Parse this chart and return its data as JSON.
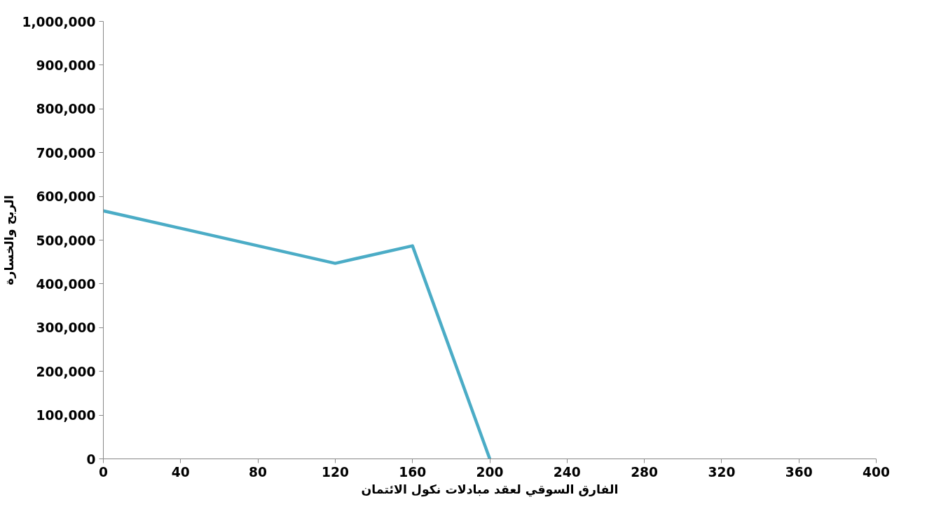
{
  "chart_data": {
    "type": "line",
    "xlabel": "الفارق السوقي لعقد مبادلات نكول الائتمان",
    "ylabel": "الربح والخسارة",
    "x": [
      0,
      120,
      160,
      200
    ],
    "series": [
      {
        "color": "#4bacc6",
        "values": [
          567000,
          447000,
          487000,
          0
        ]
      }
    ],
    "xlim": [
      0,
      400
    ],
    "xticks": [
      0,
      40,
      80,
      120,
      160,
      200,
      240,
      280,
      320,
      360,
      400
    ],
    "ylim": [
      0,
      1000000
    ],
    "yticks": [
      {
        "value": 0,
        "label": "0"
      },
      {
        "value": 100000,
        "label": "100,000"
      },
      {
        "value": 200000,
        "label": "200,000"
      },
      {
        "value": 300000,
        "label": "300,000"
      },
      {
        "value": 400000,
        "label": "400,000"
      },
      {
        "value": 500000,
        "label": "500,000"
      },
      {
        "value": 600000,
        "label": "600,000"
      },
      {
        "value": 700000,
        "label": "700,000"
      },
      {
        "value": 800000,
        "label": "800,000"
      },
      {
        "value": 900000,
        "label": "900,000"
      },
      {
        "value": 1000000,
        "label": "1,000,000"
      }
    ],
    "marker": "none",
    "line_style": "solid"
  }
}
